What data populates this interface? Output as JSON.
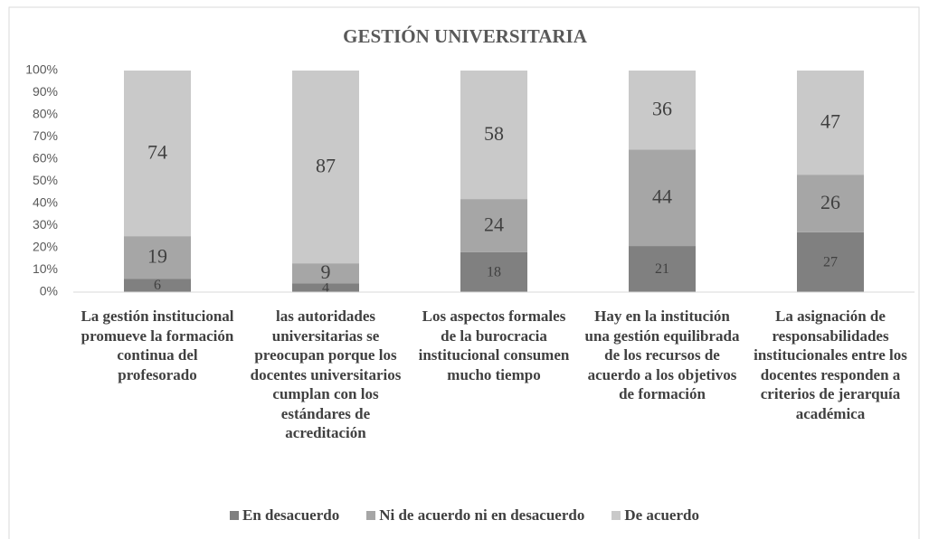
{
  "chart_data": {
    "type": "bar",
    "stacking": "percent",
    "title": "GESTIÓN UNIVERSITARIA",
    "categories": [
      "La gestión institucional promueve la formación continua del profesorado",
      "las autoridades universitarias se preocupan porque los docentes universitarios cumplan con los estándares de acreditación",
      "Los aspectos formales de la burocracia institucional consumen mucho tiempo",
      "Hay en la institución una gestión equilibrada de los recursos de acuerdo a los objetivos de formación",
      "La asignación de responsabilidades institucionales entre los docentes responden a criterios de jerarquía académica"
    ],
    "series": [
      {
        "name": "En desacuerdo",
        "color": "#808080",
        "values": [
          6,
          4,
          18,
          21,
          27
        ]
      },
      {
        "name": "Ni de acuerdo ni en desacuerdo",
        "color": "#a6a6a6",
        "values": [
          19,
          9,
          24,
          44,
          26
        ]
      },
      {
        "name": "De acuerdo",
        "color": "#c9c9c9",
        "values": [
          74,
          87,
          58,
          36,
          47
        ]
      }
    ],
    "ylim": [
      0,
      100
    ],
    "yticks": [
      {
        "value": 0,
        "label": "0%"
      },
      {
        "value": 10,
        "label": "10%"
      },
      {
        "value": 20,
        "label": "20%"
      },
      {
        "value": 30,
        "label": "30%"
      },
      {
        "value": 40,
        "label": "40%"
      },
      {
        "value": 50,
        "label": "50%"
      },
      {
        "value": 60,
        "label": "60%"
      },
      {
        "value": 70,
        "label": "70%"
      },
      {
        "value": 80,
        "label": "80%"
      },
      {
        "value": 90,
        "label": "90%"
      },
      {
        "value": 100,
        "label": "100%"
      }
    ],
    "grid": false,
    "legend": "bottom"
  }
}
